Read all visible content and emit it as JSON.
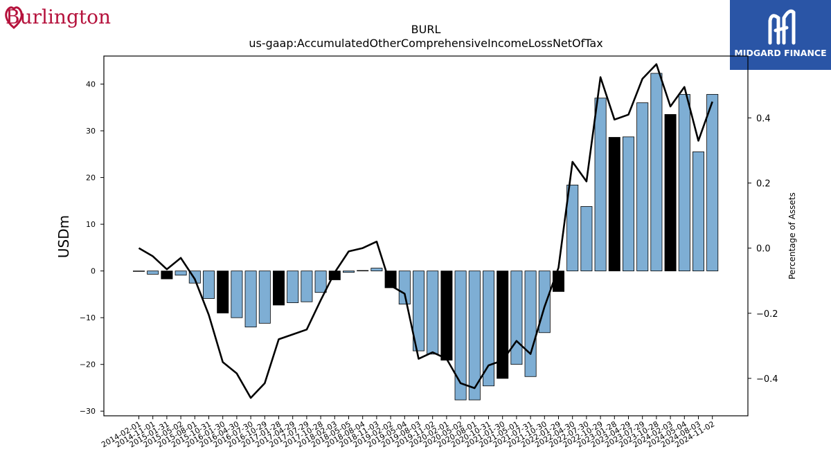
{
  "brand_left": {
    "name": "Burlington"
  },
  "brand_right": {
    "name": "MIDGARD FINANCE"
  },
  "colors": {
    "bar_default": "#7eaed4",
    "bar_highlight": "#000000",
    "line": "#000000",
    "logo_red": "#b5123c",
    "logo_blue": "#2a55a6"
  },
  "chart_data": {
    "type": "bar",
    "title": "BURL",
    "subtitle": "us-gaap:AccumulatedOtherComprehensiveIncomeLossNetOfTax",
    "ylabel": "USDm",
    "y2label": "Percentage of Assets",
    "ylim": [
      -31,
      46
    ],
    "y2lim": [
      -0.515,
      0.59
    ],
    "yticks": [
      -30,
      -20,
      -10,
      0,
      10,
      20,
      30,
      40
    ],
    "y2ticks": [
      -0.4,
      -0.2,
      0.0,
      0.2,
      0.4
    ],
    "ytick_labels": [
      "−30",
      "−20",
      "−10",
      "0",
      "10",
      "20",
      "30",
      "40"
    ],
    "y2tick_labels": [
      "−0.4",
      "−0.2",
      "0.0",
      "0.2",
      "0.4"
    ],
    "categories": [
      "2014-02-01",
      "2014-11-01",
      "2015-01-31",
      "2015-05-02",
      "2015-08-01",
      "2015-10-31",
      "2016-01-30",
      "2016-04-30",
      "2016-07-30",
      "2016-10-29",
      "2017-01-28",
      "2017-04-29",
      "2017-07-29",
      "2017-10-28",
      "2018-02-03",
      "2018-05-05",
      "2018-08-04",
      "2018-11-03",
      "2019-02-02",
      "2019-05-04",
      "2019-08-03",
      "2019-11-02",
      "2020-02-01",
      "2020-05-02",
      "2020-08-01",
      "2020-10-31",
      "2021-01-30",
      "2021-05-01",
      "2021-07-31",
      "2021-10-30",
      "2022-01-29",
      "2022-04-30",
      "2022-07-30",
      "2022-10-29",
      "2023-01-28",
      "2023-04-29",
      "2023-07-29",
      "2023-10-28",
      "2024-02-03",
      "2024-05-04",
      "2024-08-03",
      "2024-11-02"
    ],
    "values": [
      -0.1,
      -0.7,
      -1.7,
      -0.9,
      -2.6,
      -5.9,
      -9.0,
      -10.0,
      -12.0,
      -11.2,
      -7.3,
      -6.8,
      -6.6,
      -4.6,
      -1.9,
      -0.3,
      0.1,
      0.6,
      -3.6,
      -7.1,
      -17.1,
      -17.8,
      -19.1,
      -27.6,
      -27.6,
      -24.6,
      -23.0,
      -20.0,
      -22.6,
      -13.2,
      -4.4,
      18.4,
      13.8,
      37.0,
      28.6,
      28.7,
      36.0,
      42.3,
      33.5,
      37.8,
      25.5,
      37.8
    ],
    "highlight": [
      false,
      false,
      true,
      false,
      false,
      false,
      true,
      false,
      false,
      false,
      true,
      false,
      false,
      false,
      true,
      false,
      false,
      false,
      true,
      false,
      false,
      false,
      true,
      false,
      false,
      false,
      true,
      false,
      false,
      false,
      true,
      false,
      false,
      false,
      true,
      false,
      false,
      false,
      true,
      false,
      false,
      false
    ],
    "line": {
      "name": "Percentage of Assets",
      "values": [
        0.0,
        -0.025,
        -0.065,
        -0.03,
        -0.095,
        -0.205,
        -0.35,
        -0.385,
        -0.46,
        -0.415,
        -0.28,
        -0.265,
        -0.25,
        -0.16,
        -0.075,
        -0.01,
        0.0,
        0.02,
        -0.115,
        -0.14,
        -0.34,
        -0.32,
        -0.34,
        -0.415,
        -0.43,
        -0.36,
        -0.345,
        -0.285,
        -0.325,
        -0.18,
        -0.06,
        0.265,
        0.205,
        0.525,
        0.395,
        0.41,
        0.52,
        0.565,
        0.435,
        0.495,
        0.33,
        0.45
      ]
    },
    "grid": false
  }
}
